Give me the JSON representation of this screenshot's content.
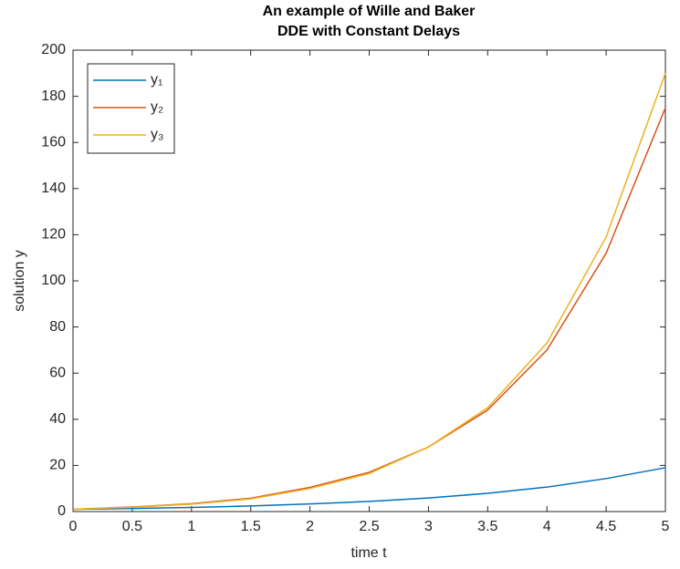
{
  "chart_data": {
    "type": "line",
    "title": [
      "An example of Wille and Baker",
      "DDE with Constant Delays"
    ],
    "x_label": "time t",
    "y_label": "solution y",
    "x": [
      0,
      0.5,
      1,
      1.5,
      2,
      2.5,
      3,
      3.5,
      4,
      4.5,
      5
    ],
    "series": [
      {
        "name": "y₁",
        "color": "#0072BD",
        "values": [
          1,
          1.34,
          1.8,
          2.4,
          3.3,
          4.4,
          5.9,
          7.9,
          10.6,
          14.3,
          19
        ]
      },
      {
        "name": "y₂",
        "color": "#D95319",
        "values": [
          1,
          2.0,
          3.4,
          5.8,
          10.5,
          17,
          28,
          44,
          70,
          112,
          175
        ]
      },
      {
        "name": "y₃",
        "color": "#EDB120",
        "values": [
          1,
          1.9,
          3.2,
          5.5,
          10,
          16.5,
          28,
          45,
          73,
          119,
          190
        ]
      }
    ],
    "xlim": [
      0,
      5
    ],
    "xticks": [
      0,
      0.5,
      1,
      1.5,
      2,
      2.5,
      3,
      3.5,
      4,
      4.5,
      5
    ],
    "ylim": [
      0,
      200
    ],
    "yticks": [
      0,
      20,
      40,
      60,
      80,
      100,
      120,
      140,
      160,
      180,
      200
    ],
    "legend": "upper-left"
  }
}
